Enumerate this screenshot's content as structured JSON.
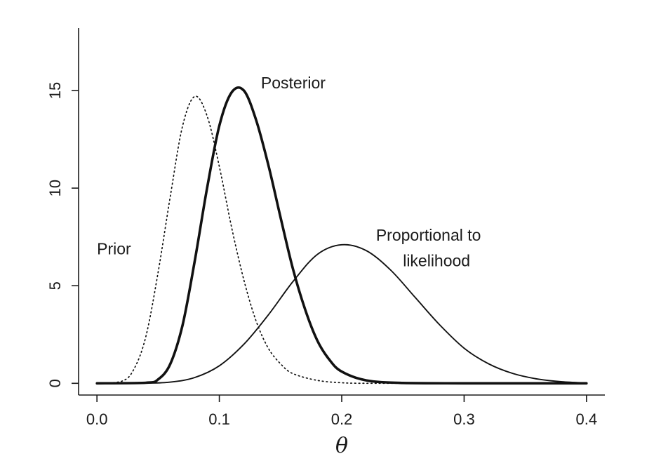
{
  "chart_data": {
    "type": "line",
    "title": "",
    "xlabel": "θ",
    "ylabel": "",
    "xlim": [
      -0.015,
      0.415
    ],
    "ylim": [
      -0.6,
      18.2
    ],
    "xticks": [
      0.0,
      0.1,
      0.2,
      0.3,
      0.4
    ],
    "xtick_labels": [
      "0.0",
      "0.1",
      "0.2",
      "0.3",
      "0.4"
    ],
    "yticks": [
      0,
      5,
      10,
      15
    ],
    "ytick_labels": [
      "0",
      "5",
      "10",
      "15"
    ],
    "grid": false,
    "legend": "none",
    "series": [
      {
        "name": "Prior",
        "style": "dotted",
        "x": [
          0.0,
          0.02,
          0.03,
          0.04,
          0.05,
          0.06,
          0.07,
          0.08,
          0.09,
          0.1,
          0.11,
          0.12,
          0.13,
          0.14,
          0.15,
          0.16,
          0.18,
          0.2,
          0.22,
          0.25
        ],
        "y": [
          0.0,
          0.1,
          0.7,
          2.4,
          5.7,
          9.6,
          13.2,
          14.7,
          13.7,
          11.1,
          8.0,
          5.3,
          3.2,
          1.8,
          1.0,
          0.5,
          0.15,
          0.03,
          0.0,
          0.0
        ]
      },
      {
        "name": "Posterior",
        "style": "thick",
        "x": [
          0.0,
          0.04,
          0.05,
          0.06,
          0.07,
          0.08,
          0.09,
          0.1,
          0.11,
          0.12,
          0.13,
          0.14,
          0.15,
          0.16,
          0.17,
          0.18,
          0.19,
          0.2,
          0.22,
          0.25,
          0.3,
          0.4
        ],
        "y": [
          0.0,
          0.03,
          0.2,
          1.0,
          3.0,
          6.3,
          10.0,
          13.2,
          14.9,
          15.0,
          13.5,
          11.2,
          8.5,
          5.9,
          3.8,
          2.2,
          1.2,
          0.6,
          0.15,
          0.02,
          0.0,
          0.0
        ]
      },
      {
        "name": "Proportional to likelihood",
        "style": "solid",
        "x": [
          0.0,
          0.04,
          0.06,
          0.08,
          0.1,
          0.12,
          0.14,
          0.16,
          0.18,
          0.2,
          0.22,
          0.24,
          0.26,
          0.28,
          0.3,
          0.32,
          0.34,
          0.36,
          0.38,
          0.4
        ],
        "y": [
          0.0,
          0.01,
          0.06,
          0.3,
          0.9,
          2.0,
          3.5,
          5.2,
          6.6,
          7.1,
          6.8,
          5.8,
          4.4,
          3.0,
          1.8,
          1.0,
          0.5,
          0.22,
          0.08,
          0.02
        ]
      }
    ],
    "annotations": [
      {
        "text": "Posterior",
        "x": 0.134,
        "y": 15.1
      },
      {
        "text": "Prior",
        "x": 0.0,
        "y": 6.6
      },
      {
        "text": "Proportional to",
        "x": 0.228,
        "y": 7.3
      },
      {
        "text": "likelihood",
        "x": 0.25,
        "y": 6.0
      }
    ]
  }
}
